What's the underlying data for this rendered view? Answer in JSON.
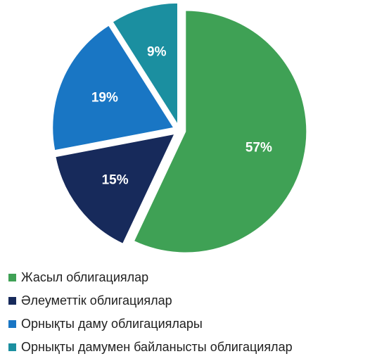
{
  "chart_data": {
    "type": "pie",
    "title": "",
    "categories": [
      "Жасыл облигациялар",
      "Әлеуметтік облигациялар",
      "Орнықты даму облигациялары",
      "Орнықты дамумен байланысты облигациялар"
    ],
    "values": [
      57,
      15,
      19,
      9
    ],
    "data_labels": [
      "57%",
      "15%",
      "19%",
      "9%"
    ],
    "colors": [
      "#3fa155",
      "#172a5b",
      "#1976c4",
      "#1b8fa0"
    ],
    "exploded": true,
    "legend_position": "bottom-left"
  }
}
